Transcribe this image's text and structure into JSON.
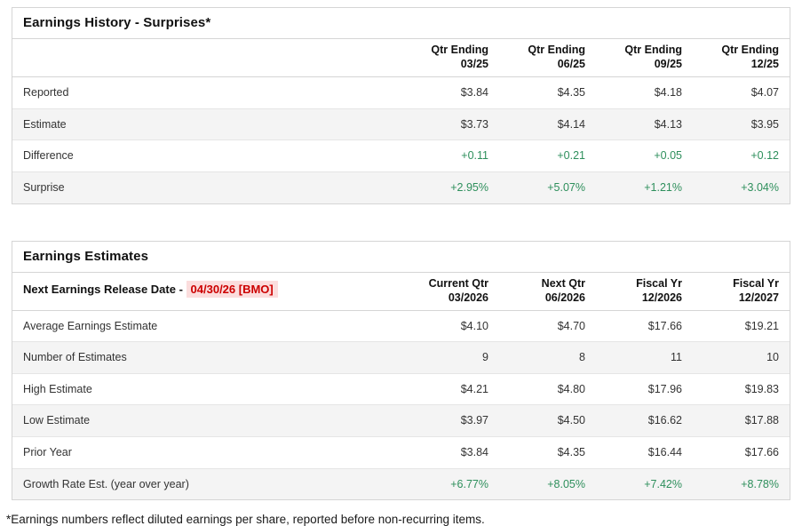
{
  "colors": {
    "positive_green": "#2e8f5c",
    "alert_red": "#cc0000",
    "alert_highlight_bg": "#fbdddd",
    "alt_row_bg": "#f4f4f4"
  },
  "earnings_history": {
    "title": "Earnings History - Surprises*",
    "columns": [
      {
        "line1": "Qtr Ending",
        "line2": "03/25"
      },
      {
        "line1": "Qtr Ending",
        "line2": "06/25"
      },
      {
        "line1": "Qtr Ending",
        "line2": "09/25"
      },
      {
        "line1": "Qtr Ending",
        "line2": "12/25"
      }
    ],
    "rows": [
      {
        "label": "Reported",
        "values": [
          "$3.84",
          "$4.35",
          "$4.18",
          "$4.07"
        ],
        "positive": false
      },
      {
        "label": "Estimate",
        "values": [
          "$3.73",
          "$4.14",
          "$4.13",
          "$3.95"
        ],
        "positive": false
      },
      {
        "label": "Difference",
        "values": [
          "+0.11",
          "+0.21",
          "+0.05",
          "+0.12"
        ],
        "positive": true
      },
      {
        "label": "Surprise",
        "values": [
          "+2.95%",
          "+5.07%",
          "+1.21%",
          "+3.04%"
        ],
        "positive": true
      }
    ]
  },
  "earnings_estimates": {
    "title": "Earnings Estimates",
    "release_label": "Next Earnings Release Date - ",
    "release_date": "04/30/26 [BMO]",
    "columns": [
      {
        "line1": "Current Qtr",
        "line2": "03/2026"
      },
      {
        "line1": "Next Qtr",
        "line2": "06/2026"
      },
      {
        "line1": "Fiscal Yr",
        "line2": "12/2026"
      },
      {
        "line1": "Fiscal Yr",
        "line2": "12/2027"
      }
    ],
    "rows": [
      {
        "label": "Average Earnings Estimate",
        "values": [
          "$4.10",
          "$4.70",
          "$17.66",
          "$19.21"
        ],
        "positive": false
      },
      {
        "label": "Number of Estimates",
        "values": [
          "9",
          "8",
          "11",
          "10"
        ],
        "positive": false
      },
      {
        "label": "High Estimate",
        "values": [
          "$4.21",
          "$4.80",
          "$17.96",
          "$19.83"
        ],
        "positive": false
      },
      {
        "label": "Low Estimate",
        "values": [
          "$3.97",
          "$4.50",
          "$16.62",
          "$17.88"
        ],
        "positive": false
      },
      {
        "label": "Prior Year",
        "values": [
          "$3.84",
          "$4.35",
          "$16.44",
          "$17.66"
        ],
        "positive": false
      },
      {
        "label": "Growth Rate Est. (year over year)",
        "values": [
          "+6.77%",
          "+8.05%",
          "+7.42%",
          "+8.78%"
        ],
        "positive": true
      }
    ]
  },
  "footnote": "*Earnings numbers reflect diluted earnings per share, reported before non-recurring items."
}
